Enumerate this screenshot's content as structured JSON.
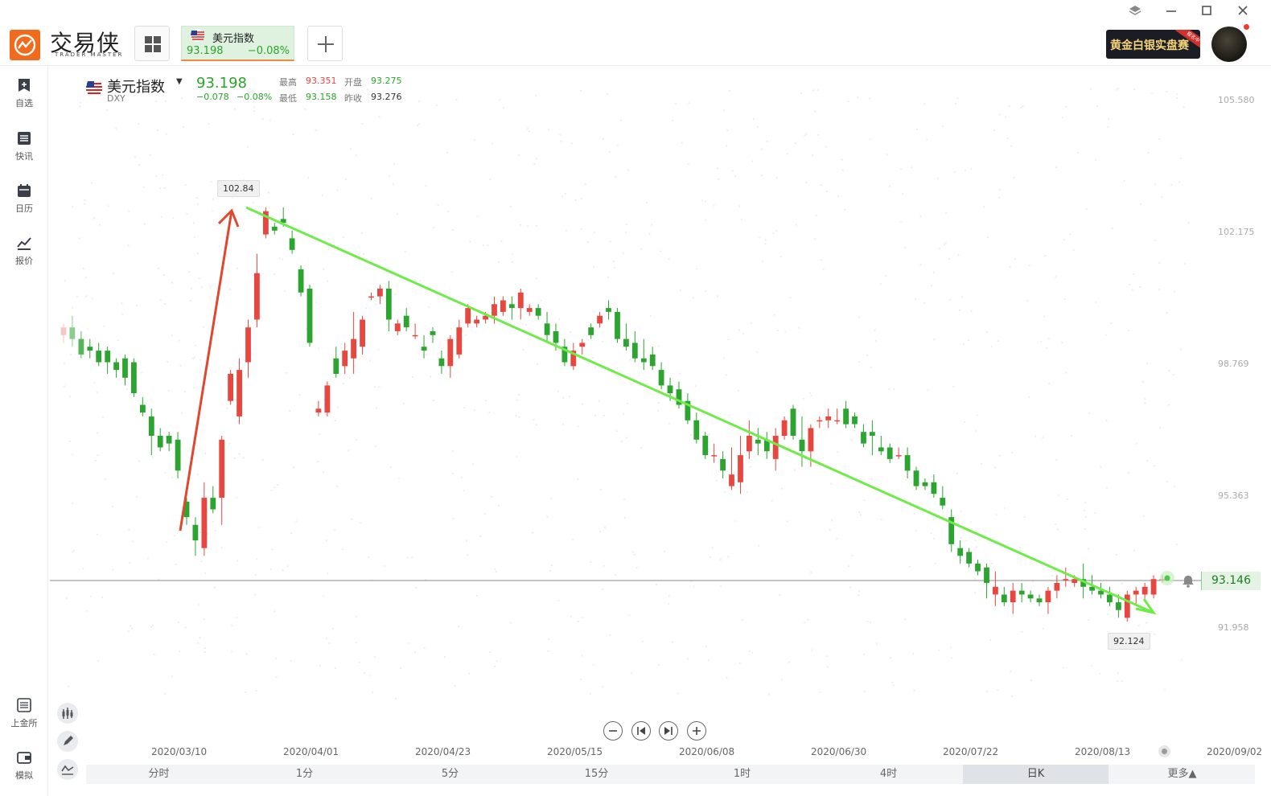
{
  "app": {
    "logo_text": "交易侠",
    "logo_sub": "TRADER MASTER"
  },
  "tab": {
    "name": "美元指数",
    "price": "93.198",
    "pct": "−0.08%"
  },
  "promo": {
    "text": "黄金白银实盘赛",
    "ribbon": "报名中"
  },
  "sidebar": {
    "items": [
      {
        "label": "自选",
        "icon": "watchlist-icon"
      },
      {
        "label": "快讯",
        "icon": "news-icon"
      },
      {
        "label": "日历",
        "icon": "calendar-icon"
      },
      {
        "label": "报价",
        "icon": "quote-icon"
      }
    ],
    "bottom_items": [
      {
        "label": "上金所",
        "icon": "sge-icon"
      },
      {
        "label": "模拟",
        "icon": "wallet-icon"
      }
    ]
  },
  "quote": {
    "name": "美元指数",
    "code": "DXY",
    "price": "93.198",
    "change": "−0.078",
    "change_pct": "−0.08%",
    "high_label": "最高",
    "high": "93.351",
    "open_label": "开盘",
    "open": "93.275",
    "low_label": "最低",
    "low": "93.158",
    "prev_label": "昨收",
    "prev": "93.276"
  },
  "colors": {
    "up": "#e8473f",
    "down": "#2ba52f",
    "trend_up": "#e0472f",
    "trend_down": "#6fec4a"
  },
  "chart_data": {
    "type": "candlestick",
    "interval": "日K",
    "y_ticks": [
      "105.580",
      "102.175",
      "98.769",
      "95.363",
      "91.958"
    ],
    "ylim": [
      90.3,
      107.3
    ],
    "x_ticks": [
      "2020/03/10",
      "2020/04/01",
      "2020/04/23",
      "2020/05/15",
      "2020/06/08",
      "2020/06/30",
      "2020/07/22",
      "2020/08/13",
      "2020/09/02"
    ],
    "current_price": "93.146",
    "max_label": "102.84",
    "min_label": "92.124",
    "candles": [
      [
        99.5,
        99.8,
        99.3,
        99.7
      ],
      [
        99.7,
        100.0,
        99.2,
        99.4
      ],
      [
        99.4,
        99.6,
        98.9,
        99.0
      ],
      [
        99.2,
        99.4,
        98.9,
        99.1
      ],
      [
        99.1,
        99.3,
        98.7,
        98.8
      ],
      [
        99.1,
        99.2,
        98.5,
        98.8
      ],
      [
        98.8,
        98.9,
        98.4,
        98.6
      ],
      [
        98.9,
        99.0,
        98.2,
        98.4
      ],
      [
        98.8,
        98.9,
        97.9,
        98.0
      ],
      [
        97.7,
        97.9,
        97.4,
        97.5
      ],
      [
        97.4,
        97.6,
        96.4,
        96.9
      ],
      [
        96.9,
        97.1,
        96.5,
        96.6
      ],
      [
        96.9,
        97.0,
        96.5,
        96.7
      ],
      [
        96.8,
        97.0,
        95.8,
        96.0
      ],
      [
        95.2,
        95.3,
        94.6,
        94.8
      ],
      [
        94.6,
        94.8,
        93.8,
        94.2
      ],
      [
        94.0,
        95.7,
        93.8,
        95.3
      ],
      [
        95.3,
        95.6,
        94.9,
        95.0
      ],
      [
        95.3,
        96.9,
        94.6,
        96.8
      ],
      [
        97.8,
        98.6,
        97.7,
        98.5
      ],
      [
        97.4,
        98.9,
        97.2,
        98.6
      ],
      [
        98.8,
        99.9,
        98.4,
        99.7
      ],
      [
        99.9,
        101.6,
        99.7,
        101.1
      ],
      [
        102.1,
        102.8,
        102.0,
        102.7
      ],
      [
        102.3,
        102.4,
        102.1,
        102.2
      ],
      [
        102.5,
        102.8,
        102.3,
        102.4
      ],
      [
        102.0,
        102.2,
        101.6,
        101.7
      ],
      [
        101.2,
        101.3,
        100.5,
        100.6
      ],
      [
        100.7,
        100.8,
        99.2,
        99.3
      ],
      [
        97.5,
        97.8,
        97.4,
        97.6
      ],
      [
        97.5,
        98.3,
        97.4,
        98.2
      ],
      [
        98.9,
        99.2,
        98.4,
        98.5
      ],
      [
        98.7,
        99.3,
        98.5,
        99.1
      ],
      [
        98.9,
        100.1,
        98.5,
        99.4
      ],
      [
        99.2,
        100.0,
        99.0,
        99.9
      ],
      [
        100.5,
        100.6,
        100.4,
        100.5
      ],
      [
        100.5,
        100.8,
        100.3,
        100.7
      ],
      [
        100.7,
        100.9,
        99.6,
        99.9
      ],
      [
        99.6,
        99.9,
        99.5,
        99.8
      ],
      [
        100.0,
        100.2,
        99.6,
        99.7
      ],
      [
        99.5,
        99.8,
        99.4,
        99.5
      ],
      [
        99.2,
        99.5,
        98.9,
        99.1
      ],
      [
        99.6,
        99.7,
        99.3,
        99.5
      ],
      [
        98.9,
        99.1,
        98.5,
        98.7
      ],
      [
        98.7,
        99.5,
        98.4,
        99.4
      ],
      [
        99.0,
        99.9,
        98.9,
        99.7
      ],
      [
        99.8,
        100.3,
        99.7,
        100.2
      ],
      [
        99.8,
        100.0,
        99.7,
        99.9
      ],
      [
        99.9,
        100.1,
        99.8,
        100.0
      ],
      [
        100.0,
        100.5,
        99.8,
        100.3
      ],
      [
        100.1,
        100.5,
        100.0,
        100.4
      ],
      [
        100.3,
        100.5,
        99.9,
        100.2
      ],
      [
        100.2,
        100.7,
        99.9,
        100.6
      ],
      [
        100.1,
        100.3,
        100.0,
        100.2
      ],
      [
        100.2,
        100.3,
        99.9,
        100.0
      ],
      [
        99.8,
        100.1,
        99.3,
        99.5
      ],
      [
        99.6,
        99.8,
        99.1,
        99.3
      ],
      [
        99.2,
        99.4,
        98.7,
        98.8
      ],
      [
        98.7,
        99.3,
        98.6,
        99.1
      ],
      [
        99.2,
        99.4,
        99.0,
        99.3
      ],
      [
        99.7,
        99.8,
        99.4,
        99.5
      ],
      [
        99.8,
        100.1,
        99.7,
        100.0
      ],
      [
        100.2,
        100.4,
        99.9,
        100.1
      ],
      [
        100.1,
        100.2,
        99.3,
        99.4
      ],
      [
        99.4,
        99.8,
        99.1,
        99.2
      ],
      [
        99.3,
        99.6,
        98.8,
        98.9
      ],
      [
        98.9,
        99.4,
        98.6,
        98.8
      ],
      [
        99.0,
        99.2,
        98.6,
        98.7
      ],
      [
        98.6,
        98.8,
        98.1,
        98.2
      ],
      [
        98.2,
        98.4,
        97.8,
        98.0
      ],
      [
        98.1,
        98.3,
        97.6,
        97.7
      ],
      [
        97.8,
        98.0,
        97.2,
        97.3
      ],
      [
        97.3,
        97.5,
        96.7,
        96.8
      ],
      [
        96.9,
        97.0,
        96.3,
        96.4
      ],
      [
        96.4,
        96.7,
        96.2,
        96.4
      ],
      [
        96.3,
        96.5,
        95.8,
        96.0
      ],
      [
        95.6,
        96.6,
        95.5,
        95.9
      ],
      [
        95.7,
        96.9,
        95.4,
        96.4
      ],
      [
        96.5,
        97.3,
        96.3,
        96.9
      ],
      [
        96.8,
        97.1,
        96.4,
        96.7
      ],
      [
        96.8,
        97.0,
        96.3,
        96.5
      ],
      [
        96.3,
        97.1,
        96.0,
        96.9
      ],
      [
        96.9,
        97.4,
        96.8,
        97.3
      ],
      [
        97.6,
        97.7,
        96.8,
        96.9
      ],
      [
        96.8,
        97.4,
        96.1,
        96.5
      ],
      [
        96.5,
        97.2,
        96.1,
        97.1
      ],
      [
        97.3,
        97.4,
        97.1,
        97.3
      ],
      [
        97.3,
        97.6,
        97.1,
        97.4
      ],
      [
        97.3,
        97.6,
        97.2,
        97.3
      ],
      [
        97.6,
        97.8,
        97.1,
        97.2
      ],
      [
        97.4,
        97.5,
        97.1,
        97.2
      ],
      [
        97.0,
        97.2,
        96.6,
        96.7
      ],
      [
        97.0,
        97.3,
        96.4,
        96.9
      ],
      [
        96.6,
        96.9,
        96.4,
        96.5
      ],
      [
        96.6,
        96.7,
        96.2,
        96.3
      ],
      [
        96.4,
        96.6,
        96.3,
        96.4
      ],
      [
        96.4,
        96.6,
        95.8,
        96.0
      ],
      [
        96.0,
        96.1,
        95.5,
        95.6
      ],
      [
        95.7,
        95.8,
        95.5,
        95.6
      ],
      [
        95.7,
        95.9,
        95.3,
        95.4
      ],
      [
        95.3,
        95.6,
        95.0,
        95.1
      ],
      [
        94.8,
        95.0,
        93.9,
        94.1
      ],
      [
        94.0,
        94.2,
        93.6,
        93.8
      ],
      [
        93.9,
        94.0,
        93.5,
        93.6
      ],
      [
        93.6,
        93.7,
        93.3,
        93.4
      ],
      [
        93.5,
        93.6,
        92.7,
        93.1
      ],
      [
        92.8,
        93.4,
        92.5,
        93.0
      ],
      [
        92.8,
        93.0,
        92.5,
        92.6
      ],
      [
        92.6,
        93.1,
        92.3,
        92.9
      ],
      [
        92.9,
        93.1,
        92.6,
        92.8
      ],
      [
        92.8,
        92.9,
        92.6,
        92.7
      ],
      [
        92.7,
        92.8,
        92.5,
        92.6
      ],
      [
        92.6,
        93.0,
        92.3,
        92.9
      ],
      [
        92.9,
        93.3,
        92.7,
        93.1
      ],
      [
        93.2,
        93.5,
        93.0,
        93.2
      ],
      [
        93.1,
        93.3,
        93.0,
        93.2
      ],
      [
        93.2,
        93.6,
        92.7,
        93.0
      ],
      [
        93.0,
        93.3,
        92.8,
        92.9
      ],
      [
        92.9,
        93.1,
        92.7,
        92.8
      ],
      [
        92.8,
        93.0,
        92.5,
        92.6
      ],
      [
        92.6,
        92.8,
        92.2,
        92.4
      ],
      [
        92.2,
        92.9,
        92.1,
        92.8
      ],
      [
        92.8,
        93.0,
        92.5,
        92.9
      ],
      [
        92.8,
        93.1,
        92.6,
        93.0
      ],
      [
        92.8,
        93.3,
        92.7,
        93.2
      ],
      [
        93.2,
        93.3,
        93.1,
        93.2
      ]
    ]
  },
  "annotations": {
    "max_tag": "102.84",
    "min_tag": "92.124",
    "price_tag": "93.146"
  },
  "periods": [
    "分时",
    "1分",
    "5分",
    "15分",
    "1时",
    "4时",
    "日K",
    "更多▲"
  ],
  "active_period": "日K"
}
